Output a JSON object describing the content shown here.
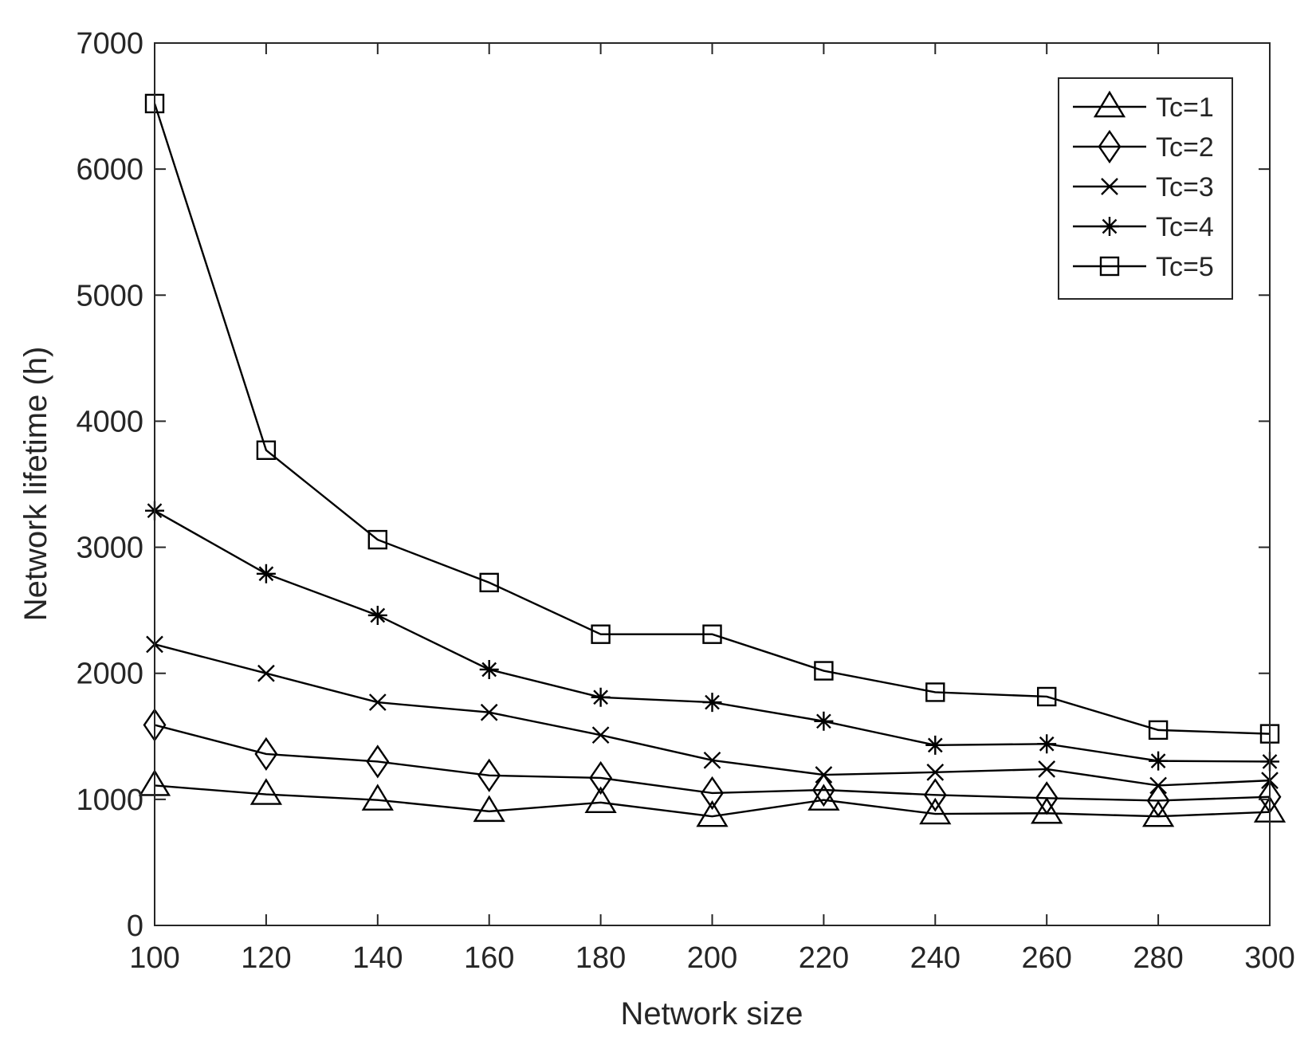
{
  "chart_data": {
    "type": "line",
    "title": "",
    "xlabel": "Network size",
    "ylabel": "Network lifetime (h)",
    "xlim": [
      100,
      300
    ],
    "ylim": [
      0,
      7000
    ],
    "xticks": [
      100,
      120,
      140,
      160,
      180,
      200,
      220,
      240,
      260,
      280,
      300
    ],
    "yticks": [
      0,
      1000,
      2000,
      3000,
      4000,
      5000,
      6000,
      7000
    ],
    "grid": false,
    "legend_position": "top-right",
    "line_color": "#000000",
    "x": [
      100,
      120,
      140,
      160,
      180,
      200,
      220,
      240,
      260,
      280,
      300
    ],
    "series": [
      {
        "name": "Tc=1",
        "marker": "triangle",
        "values": [
          1110,
          1040,
          995,
          905,
          975,
          865,
          995,
          885,
          890,
          865,
          900
        ]
      },
      {
        "name": "Tc=2",
        "marker": "diamond",
        "values": [
          1590,
          1360,
          1300,
          1190,
          1170,
          1050,
          1075,
          1035,
          1010,
          990,
          1020
        ]
      },
      {
        "name": "Tc=3",
        "marker": "x",
        "values": [
          2230,
          2000,
          1770,
          1690,
          1510,
          1310,
          1195,
          1215,
          1240,
          1110,
          1150
        ]
      },
      {
        "name": "Tc=4",
        "marker": "asterisk",
        "values": [
          3290,
          2790,
          2460,
          2030,
          1810,
          1770,
          1620,
          1430,
          1440,
          1305,
          1300
        ]
      },
      {
        "name": "Tc=5",
        "marker": "square",
        "values": [
          6520,
          3770,
          3060,
          2720,
          2310,
          2310,
          2020,
          1850,
          1815,
          1550,
          1520
        ]
      }
    ]
  }
}
